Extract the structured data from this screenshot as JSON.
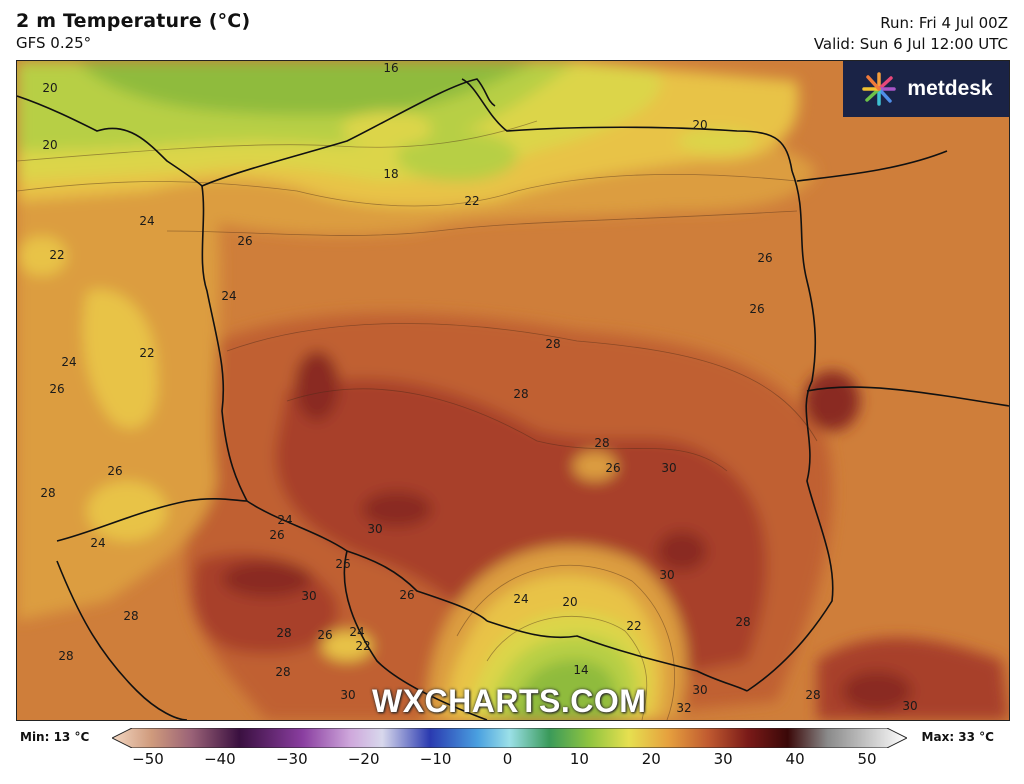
{
  "header": {
    "title": "2 m Temperature (°C)",
    "model": "GFS 0.25°",
    "run": "Run: Fri 4 Jul 00Z",
    "valid": "Valid: Sun 6 Jul 12:00 UTC"
  },
  "logo": {
    "text": "metdesk"
  },
  "watermark": "WXCHARTS.COM",
  "colors": {
    "t16": "#8fbb3e",
    "t18": "#b7cf45",
    "t20": "#dcd54a",
    "t22": "#e8c347",
    "t24": "#dc9d40",
    "t26": "#cf7e3a",
    "t28": "#c06033",
    "t30": "#a8402a",
    "t32": "#8a2a22"
  },
  "contour_labels": [
    {
      "text": "16"
    },
    {
      "text": "20"
    },
    {
      "text": "20"
    },
    {
      "text": "18"
    },
    {
      "text": "22"
    },
    {
      "text": "20"
    },
    {
      "text": "24"
    },
    {
      "text": "26"
    },
    {
      "text": "22"
    },
    {
      "text": "24"
    },
    {
      "text": "26"
    },
    {
      "text": "26"
    },
    {
      "text": "24"
    },
    {
      "text": "22"
    },
    {
      "text": "26"
    },
    {
      "text": "28"
    },
    {
      "text": "28"
    },
    {
      "text": "28"
    },
    {
      "text": "26"
    },
    {
      "text": "30"
    },
    {
      "text": "26"
    },
    {
      "text": "28"
    },
    {
      "text": "24"
    },
    {
      "text": "30"
    },
    {
      "text": "24"
    },
    {
      "text": "26"
    },
    {
      "text": "26"
    },
    {
      "text": "30"
    },
    {
      "text": "26"
    },
    {
      "text": "24"
    },
    {
      "text": "20"
    },
    {
      "text": "22"
    },
    {
      "text": "30"
    },
    {
      "text": "28"
    },
    {
      "text": "26"
    },
    {
      "text": "24"
    },
    {
      "text": "22"
    },
    {
      "text": "28"
    },
    {
      "text": "28"
    },
    {
      "text": "28"
    },
    {
      "text": "30"
    },
    {
      "text": "30"
    },
    {
      "text": "32"
    },
    {
      "text": "28"
    },
    {
      "text": "30"
    },
    {
      "text": "14"
    },
    {
      "text": "28"
    }
  ],
  "scale": {
    "min_label": "Min: 13 °C",
    "max_label": "Max: 33 °C",
    "ticks": [
      "−50",
      "−40",
      "−30",
      "−20",
      "−10",
      "0",
      "10",
      "20",
      "30",
      "40",
      "50"
    ]
  }
}
